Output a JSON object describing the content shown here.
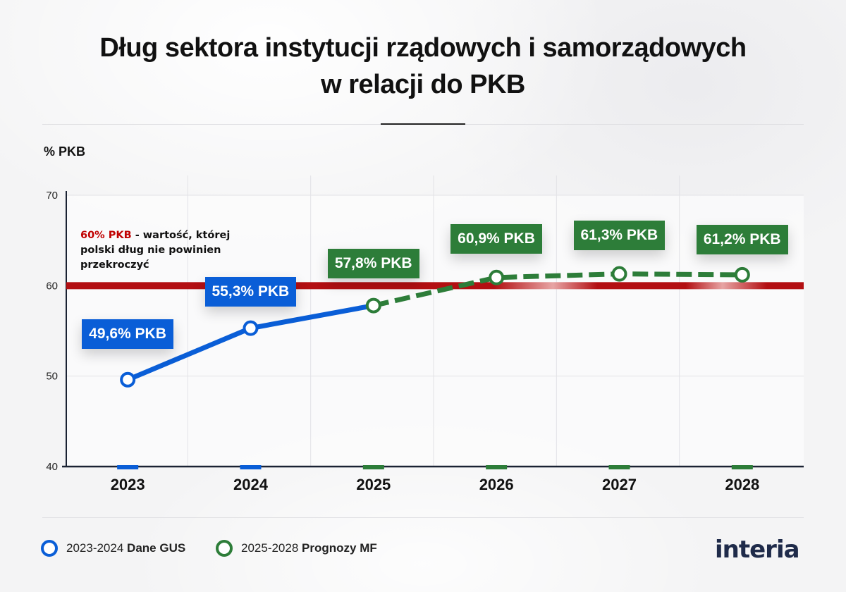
{
  "title": {
    "line1": "Dług sektora instytucji rządowych i samorządowych",
    "line2": "w relacji do PKB"
  },
  "threshold_note": {
    "highlight": "60% PKB",
    "text": " - wartość, której polski dług nie powinien przekroczyć"
  },
  "legend": {
    "item1_range": "2023-2024 ",
    "item1_name": "Dane GUS",
    "item2_range": "2025-2028 ",
    "item2_name": "Prognozy MF"
  },
  "logo": "interia",
  "colors": {
    "actual": "#0a5ed7",
    "forecast": "#2d7d39",
    "threshold": "#b30f12"
  },
  "chart_data": {
    "type": "line",
    "ylabel": "% PKB",
    "xlabel": "",
    "categories": [
      "2023",
      "2024",
      "2025",
      "2026",
      "2027",
      "2028"
    ],
    "ylim": [
      40,
      70
    ],
    "yticks": [
      40,
      50,
      60,
      70
    ],
    "threshold": 60,
    "series": [
      {
        "name": "Dane GUS",
        "x": [
          "2023",
          "2024",
          "2025"
        ],
        "values": [
          49.6,
          55.3,
          57.8
        ],
        "style": "solid"
      },
      {
        "name": "Prognozy MF",
        "x": [
          "2025",
          "2026",
          "2027",
          "2028"
        ],
        "values": [
          57.8,
          60.9,
          61.3,
          61.2
        ],
        "style": "dashed"
      }
    ],
    "data_labels": [
      {
        "year": "2023",
        "text": "49,6% PKB",
        "kind": "actual"
      },
      {
        "year": "2024",
        "text": "55,3% PKB",
        "kind": "actual"
      },
      {
        "year": "2025",
        "text": "57,8% PKB",
        "kind": "forecast"
      },
      {
        "year": "2026",
        "text": "60,9% PKB",
        "kind": "forecast"
      },
      {
        "year": "2027",
        "text": "61,3% PKB",
        "kind": "forecast"
      },
      {
        "year": "2028",
        "text": "61,2% PKB",
        "kind": "forecast"
      }
    ],
    "grid": true
  }
}
